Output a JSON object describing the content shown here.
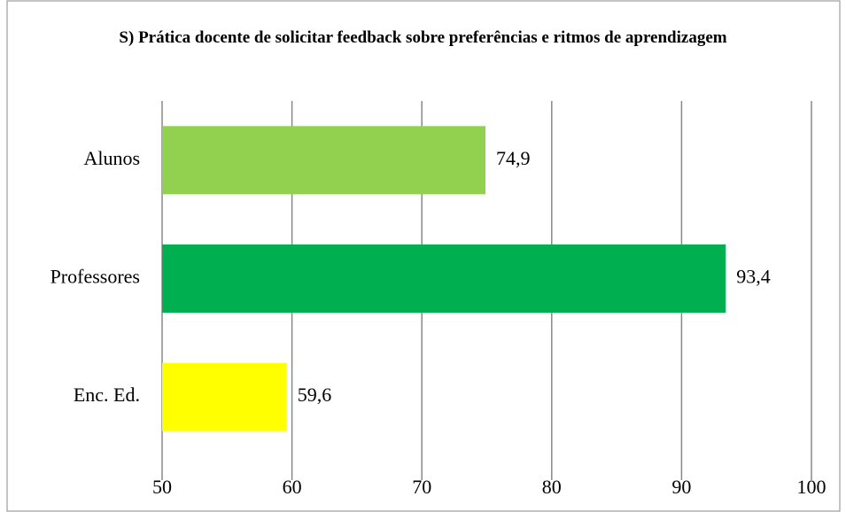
{
  "chart_data": {
    "type": "bar",
    "orientation": "horizontal",
    "title": "S) Prática docente de solicitar feedback sobre preferências e ritmos de aprendizagem",
    "categories": [
      "Alunos",
      "Professores",
      "Enc. Ed."
    ],
    "values": [
      74.9,
      93.4,
      59.6
    ],
    "value_labels": [
      "74,9",
      "93,4",
      "59,6"
    ],
    "colors": [
      "#92d050",
      "#00b050",
      "#ffff00"
    ],
    "xlim": [
      50,
      100
    ],
    "xticks": [
      50,
      60,
      70,
      80,
      90,
      100
    ],
    "grid": true
  }
}
